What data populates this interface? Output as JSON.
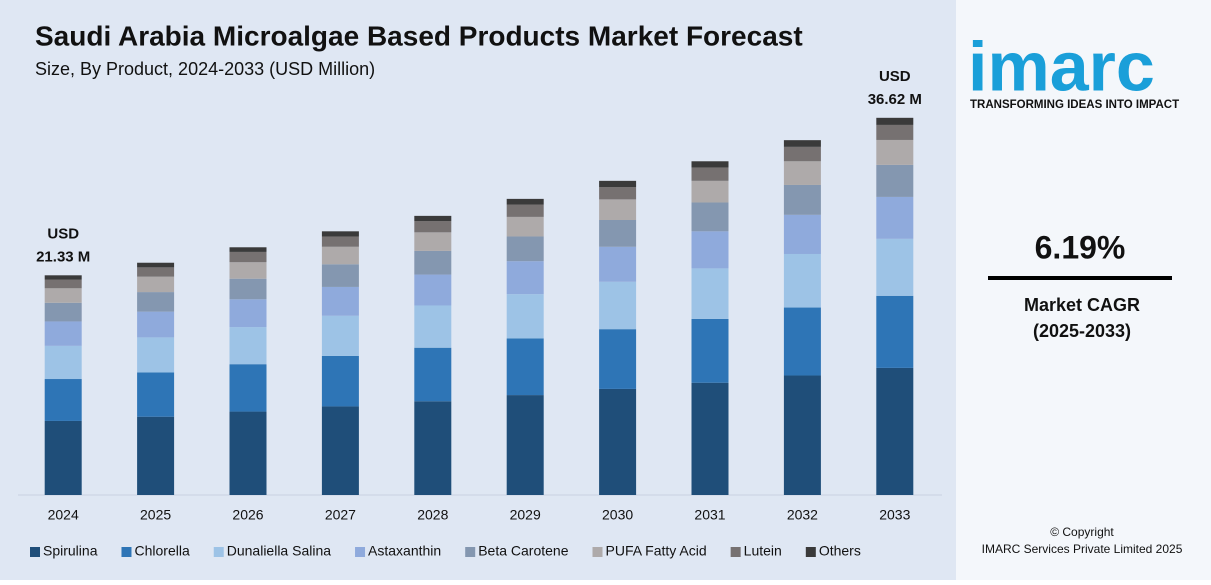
{
  "chart_data": {
    "type": "stacked_bar",
    "title": "Saudi Arabia Microalgae Based Products Market Forecast",
    "subtitle": "Size, By Product, 2024-2033 (USD Million)",
    "categories": [
      "2024",
      "2025",
      "2026",
      "2027",
      "2028",
      "2029",
      "2030",
      "2031",
      "2032",
      "2033"
    ],
    "series": [
      {
        "name": "Spirulina",
        "color": "#1f4e79",
        "values": [
          7.19,
          7.6,
          8.1,
          8.6,
          9.1,
          9.7,
          10.3,
          10.9,
          11.6,
          12.34
        ]
      },
      {
        "name": "Chlorella",
        "color": "#2e75b6",
        "values": [
          4.07,
          4.3,
          4.6,
          4.9,
          5.2,
          5.5,
          5.8,
          6.2,
          6.6,
          7.0
        ]
      },
      {
        "name": "Dunaliella Salina",
        "color": "#9dc3e6",
        "values": [
          3.22,
          3.4,
          3.6,
          3.9,
          4.1,
          4.3,
          4.6,
          4.9,
          5.2,
          5.53
        ]
      },
      {
        "name": "Astaxanthin",
        "color": "#8faadc",
        "values": [
          2.37,
          2.5,
          2.7,
          2.8,
          3.0,
          3.2,
          3.4,
          3.6,
          3.8,
          4.07
        ]
      },
      {
        "name": "Beta Carotene",
        "color": "#8497b0",
        "values": [
          1.81,
          1.9,
          2.0,
          2.2,
          2.3,
          2.4,
          2.6,
          2.8,
          2.9,
          3.11
        ]
      },
      {
        "name": "PUFA Fatty Acid",
        "color": "#aeaaaa",
        "values": [
          1.41,
          1.5,
          1.6,
          1.7,
          1.8,
          1.9,
          2.0,
          2.1,
          2.3,
          2.42
        ]
      },
      {
        "name": "Lutein",
        "color": "#767171",
        "values": [
          0.85,
          0.9,
          1.0,
          1.0,
          1.1,
          1.2,
          1.2,
          1.3,
          1.4,
          1.46
        ]
      },
      {
        "name": "Others",
        "color": "#3a3a3a",
        "values": [
          0.41,
          0.45,
          0.45,
          0.5,
          0.5,
          0.55,
          0.6,
          0.6,
          0.65,
          0.69
        ]
      }
    ],
    "ylim": [
      0,
      40
    ],
    "start_label": [
      "USD",
      "21.33 M"
    ],
    "end_label": [
      "USD",
      "36.62 M"
    ]
  },
  "sidebar": {
    "logo": "imarc",
    "tagline": "TRANSFORMING IDEAS INTO IMPACT",
    "cagr": "6.19%",
    "cagr_label": "Market CAGR",
    "cagr_period": "(2025-2033)",
    "copyright": "© Copyright",
    "company": "IMARC Services Private Limited 2025"
  }
}
